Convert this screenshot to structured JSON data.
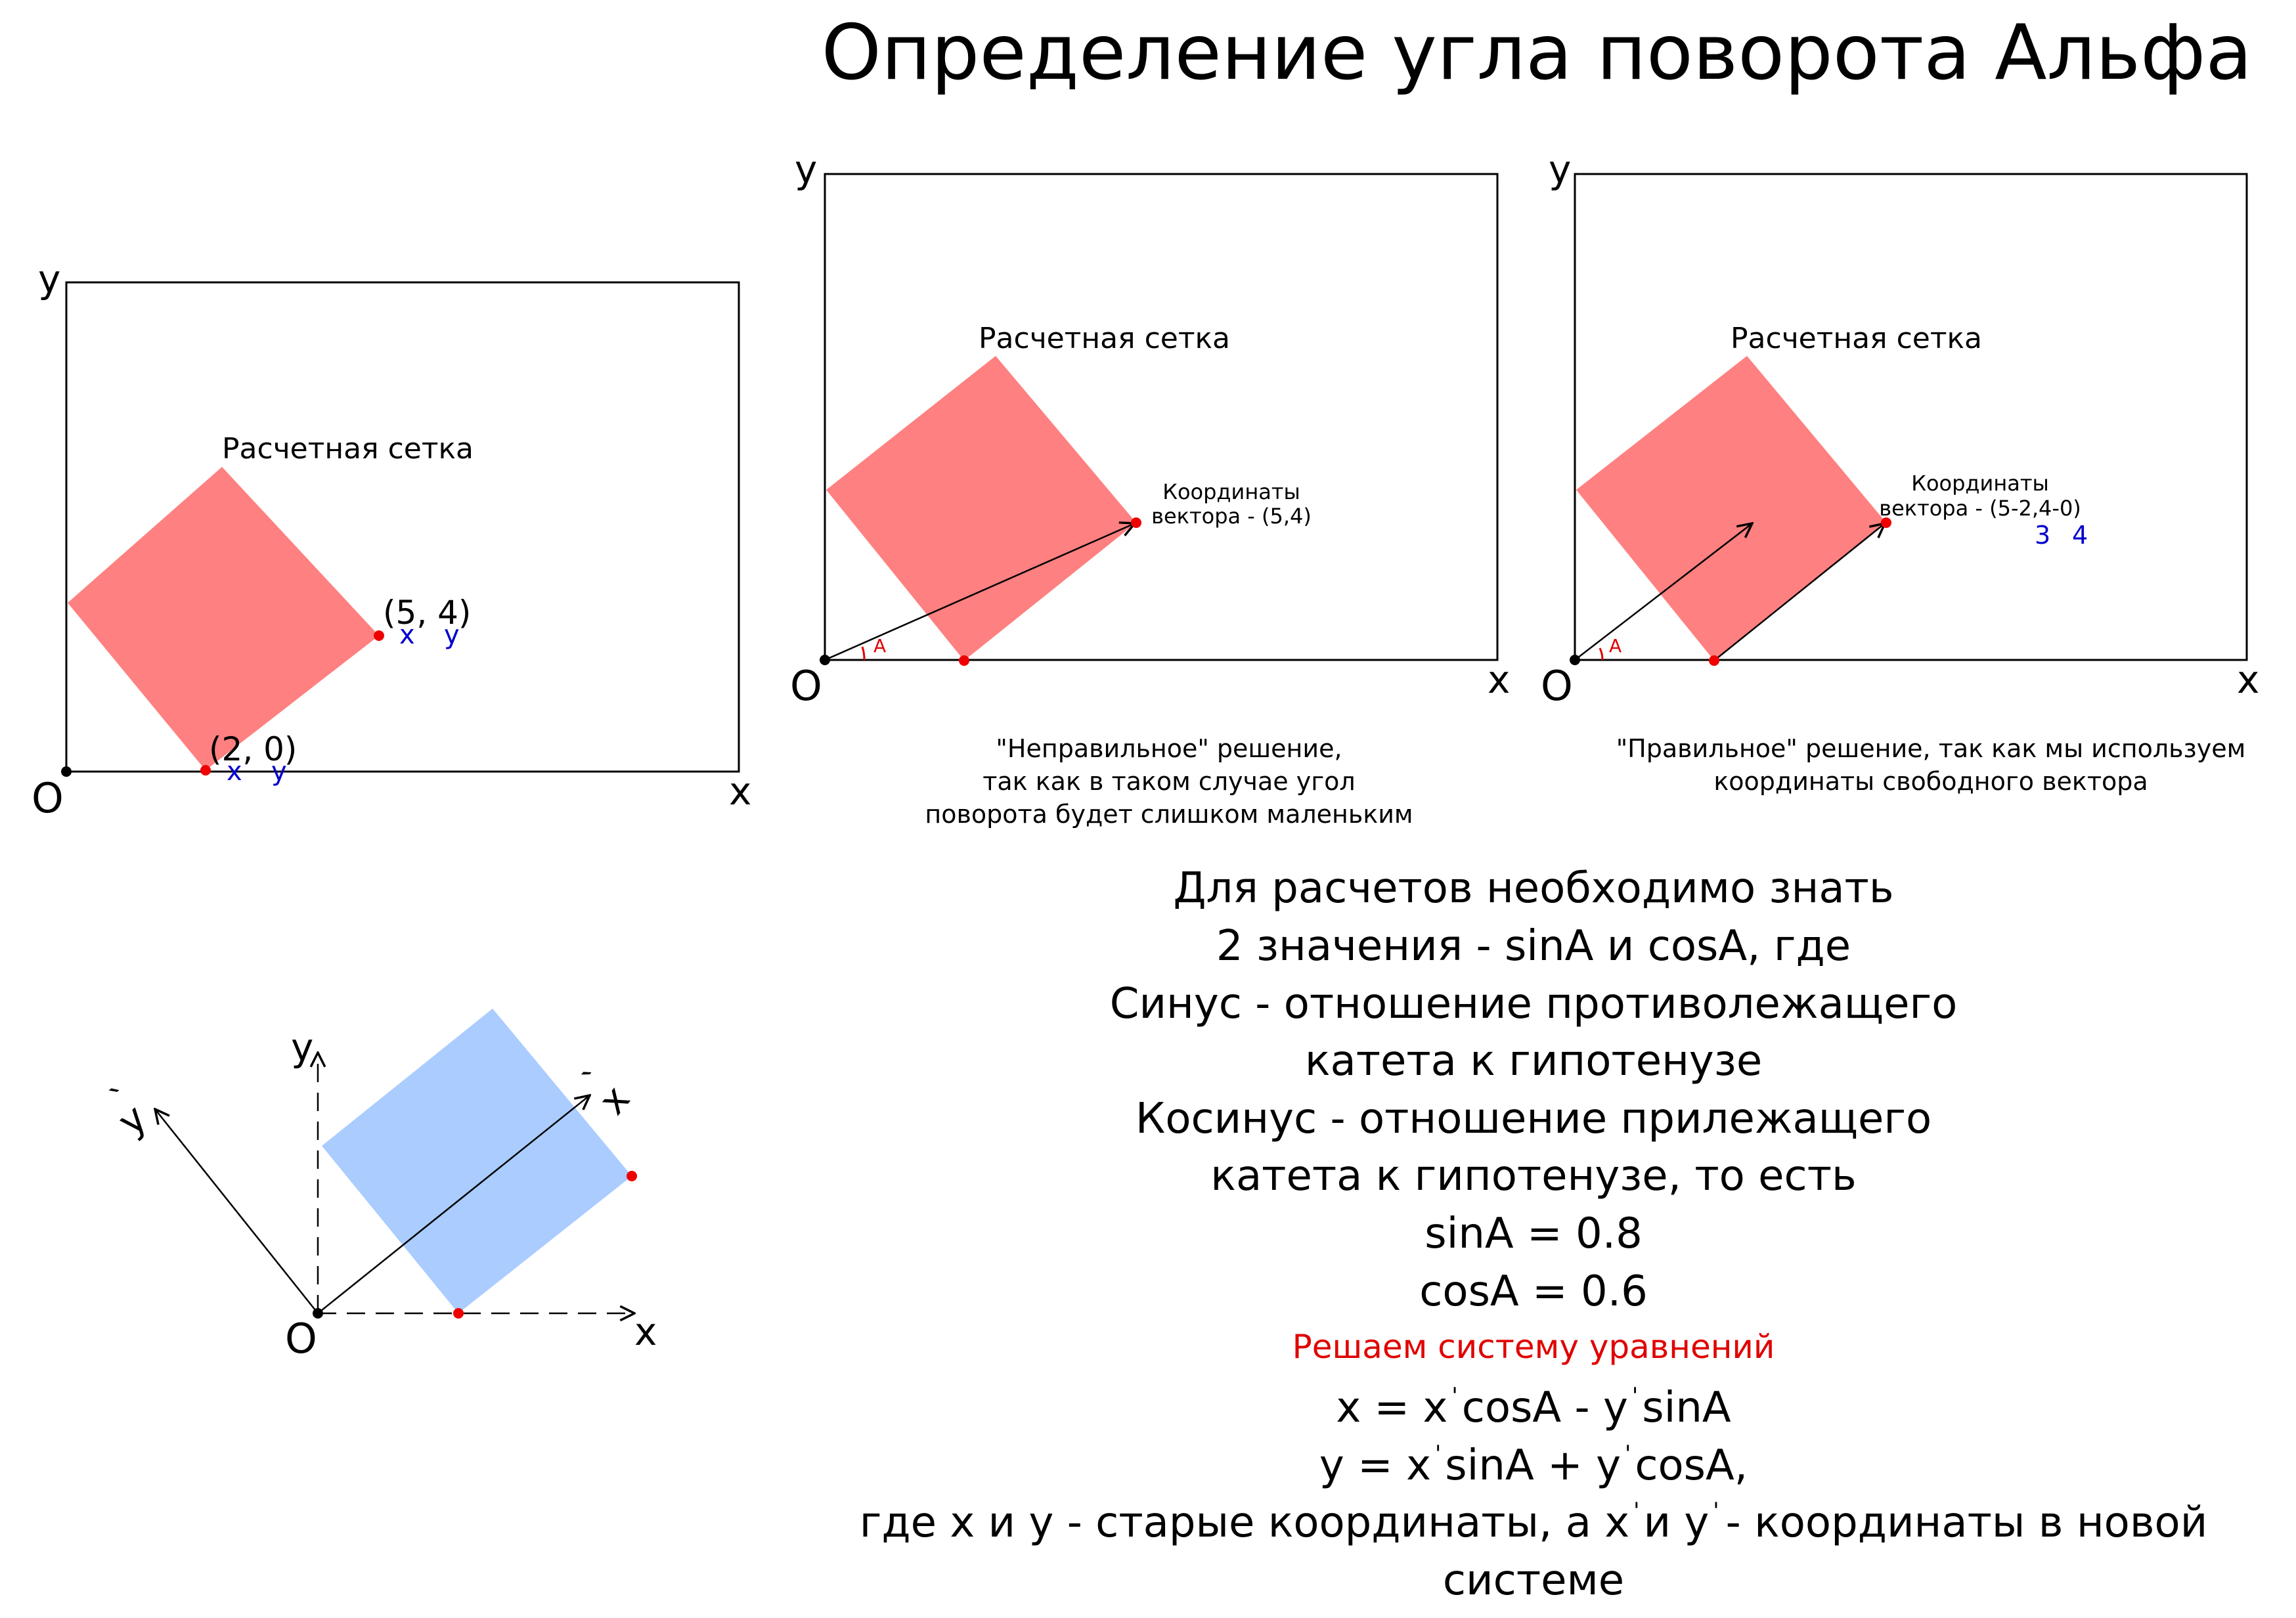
{
  "title": "Определение угла поворота Альфа",
  "colors": {
    "grid_fill": "#ff8080",
    "rotated_fill": "#aaccff",
    "point": "#ee0000",
    "annotation": "#0000cc",
    "highlight": "#e00000",
    "line": "#000000"
  },
  "icons": {
    "origin": "black-dot",
    "point": "red-dot",
    "axis_arrow": "arrowhead"
  },
  "panel1": {
    "label_y": "y",
    "label_x": "x",
    "label_o": "O",
    "grid_label": "Расчетная сетка",
    "point_top": "(5, 4)",
    "point_top_x": "x",
    "point_top_y": "y",
    "point_bottom": "(2, 0)",
    "point_bottom_x": "x",
    "point_bottom_y": "y"
  },
  "panel2": {
    "label_y": "y",
    "label_x": "x",
    "label_o": "O",
    "grid_label": "Расчетная сетка",
    "coord_line1": "Координаты",
    "coord_line2": "вектора - (5,4)",
    "angle": "A",
    "caption1": "\"Неправильное\" решение,",
    "caption2": "так как в таком случае угол",
    "caption3": "поворота будет слишком маленьким"
  },
  "panel3": {
    "label_y": "y",
    "label_x": "x",
    "label_o": "O",
    "grid_label": "Расчетная сетка",
    "coord_line1": "Координаты",
    "coord_line2": "вектора - (5-2,4-0)",
    "val_x": "3",
    "val_y": "4",
    "angle": "A",
    "caption1": "\"Правильное\" решение, так как мы используем",
    "caption2": "координаты свободного вектора"
  },
  "panel4": {
    "label_y": "y",
    "label_x": "x",
    "label_o": "O",
    "label_y_new": "y",
    "label_x_new": "x",
    "prime": "`"
  },
  "explanation": {
    "line1": "Для расчетов необходимо знать",
    "line2": "2 значения - sinA и cosA, где",
    "line3": "Синус - отношение противолежащего",
    "line4": "катета к гипотенузе",
    "line5": "Косинус - отношение прилежащего",
    "line6": "катета к гипотенузе, то есть",
    "line7": "sinA = 0.8",
    "line8": "cosA = 0.6",
    "highlight": "Решаем систему уравнений",
    "prime": "'",
    "eq1_a": "x = x",
    "eq1_b": "cosA - y",
    "eq1_c": "sinA",
    "eq2_a": "y = x",
    "eq2_b": "sinA + y",
    "eq2_c": "cosA,",
    "note_a": "где x и y - старые координаты, а x",
    "note_b": "и y",
    "note_c": "- координаты в новой",
    "note_d": "системе"
  }
}
